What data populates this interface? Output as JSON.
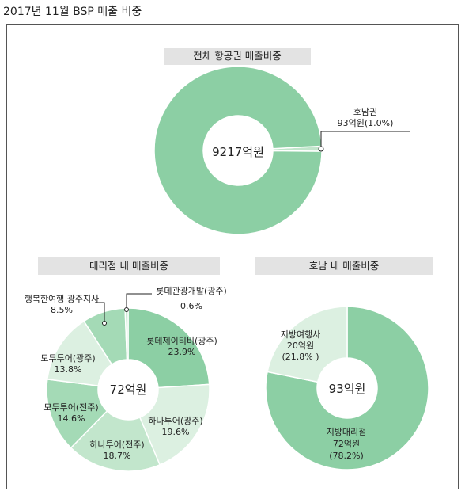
{
  "page": {
    "title": "2017년 11월  BSP 매출 비중"
  },
  "colors": {
    "green_dark": "#8ccfa4",
    "green_mid": "#a4dab6",
    "green_light": "#c2e6cc",
    "green_pale": "#dcf0e1"
  },
  "chart_data": [
    {
      "type": "pie",
      "title": "전체 항공권 매출비중",
      "center_label": "9217억원",
      "slices": [
        {
          "name": "",
          "value": 99.0
        },
        {
          "name": "호남권",
          "value": 1.0,
          "label": "93억원(1.0%)"
        }
      ]
    },
    {
      "type": "pie",
      "title": "대리점 내 매출비중",
      "center_label": "72억원",
      "slices": [
        {
          "name": "롯데제이티비(광주)",
          "value": 23.9,
          "label": "23.9%"
        },
        {
          "name": "하나투어(광주)",
          "value": 19.6,
          "label": "19.6%"
        },
        {
          "name": "하나투어(전주)",
          "value": 18.7,
          "label": "18.7%"
        },
        {
          "name": "모두투어(전주)",
          "value": 14.6,
          "label": "14.6%"
        },
        {
          "name": "모두투어(광주)",
          "value": 13.8,
          "label": "13.8%"
        },
        {
          "name": "행복한여행 광주지사",
          "value": 8.5,
          "label": "8.5%"
        },
        {
          "name": "롯데관광개발(광주)",
          "value": 0.6,
          "label": "0.6%"
        }
      ]
    },
    {
      "type": "pie",
      "title": "호남 내 매출비중",
      "center_label": "93억원",
      "slices": [
        {
          "name": "지방대리점",
          "value": 78.2,
          "amount": "72억원",
          "label": "(78.2%)"
        },
        {
          "name": "지방여행사",
          "value": 21.8,
          "amount": "20억원",
          "label": "(21.8% )"
        }
      ]
    }
  ]
}
